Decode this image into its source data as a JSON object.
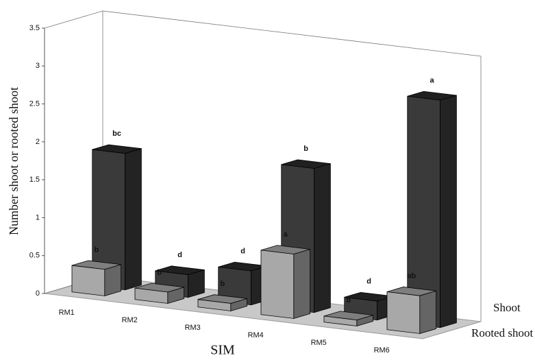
{
  "chart_data": {
    "type": "bar3d",
    "y_label": "Number shoot or rooted shoot",
    "x_label": "SIM",
    "categories": [
      "RM1",
      "RM2",
      "RM3",
      "RM4",
      "RM5",
      "RM6"
    ],
    "series": [
      {
        "name": "Shoot",
        "color": "#3a3a3a",
        "values": [
          1.8,
          0.3,
          0.45,
          1.9,
          0.25,
          3.0
        ],
        "letters": [
          "bc",
          "d",
          "d",
          "b",
          "d",
          "a"
        ]
      },
      {
        "name": "Rooted shoot",
        "color": "#a8a8a8",
        "values": [
          0.35,
          0.15,
          0.1,
          0.85,
          0.08,
          0.5
        ],
        "letters": [
          "b",
          "b",
          "b",
          "a",
          "b",
          "ab"
        ]
      }
    ],
    "ylim": [
      0,
      3.5
    ],
    "yticks": [
      0,
      0.5,
      1,
      1.5,
      2,
      2.5,
      3,
      3.5
    ]
  }
}
